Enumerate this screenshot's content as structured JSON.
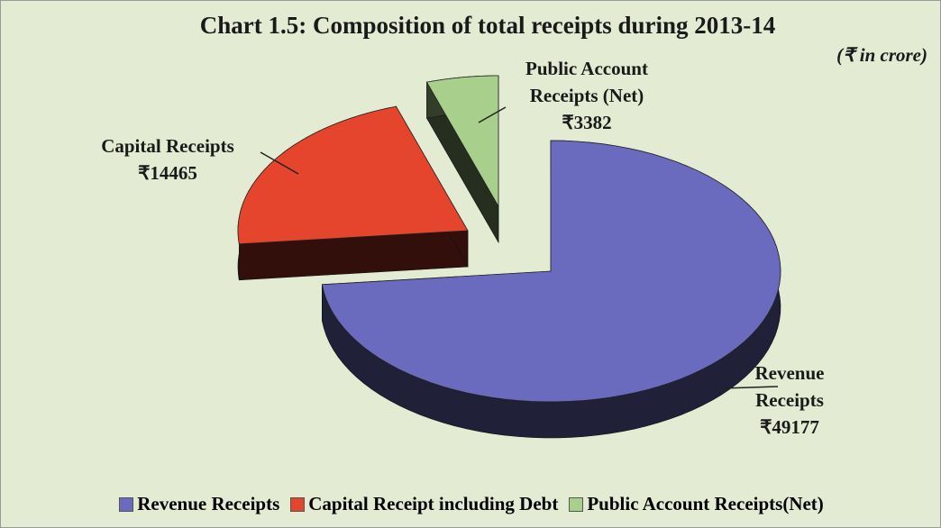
{
  "chart_data": {
    "type": "pie",
    "title": "Chart 1.5: Composition of total receipts during 2013-14",
    "subtitle": "(₹ in crore)",
    "categories": [
      "Revenue Receipts",
      "Capital Receipts",
      "Public Account Receipts (Net)"
    ],
    "values": [
      49177,
      14465,
      3382
    ],
    "value_labels": [
      "₹49177",
      "₹14465",
      "₹3382"
    ],
    "colors": [
      "#6a6abf",
      "#e5452d",
      "#a8cf8c"
    ],
    "legend_labels": [
      "Revenue Receipts",
      "Capital Receipt including Debt",
      "Public Account Receipts(Net)"
    ]
  }
}
